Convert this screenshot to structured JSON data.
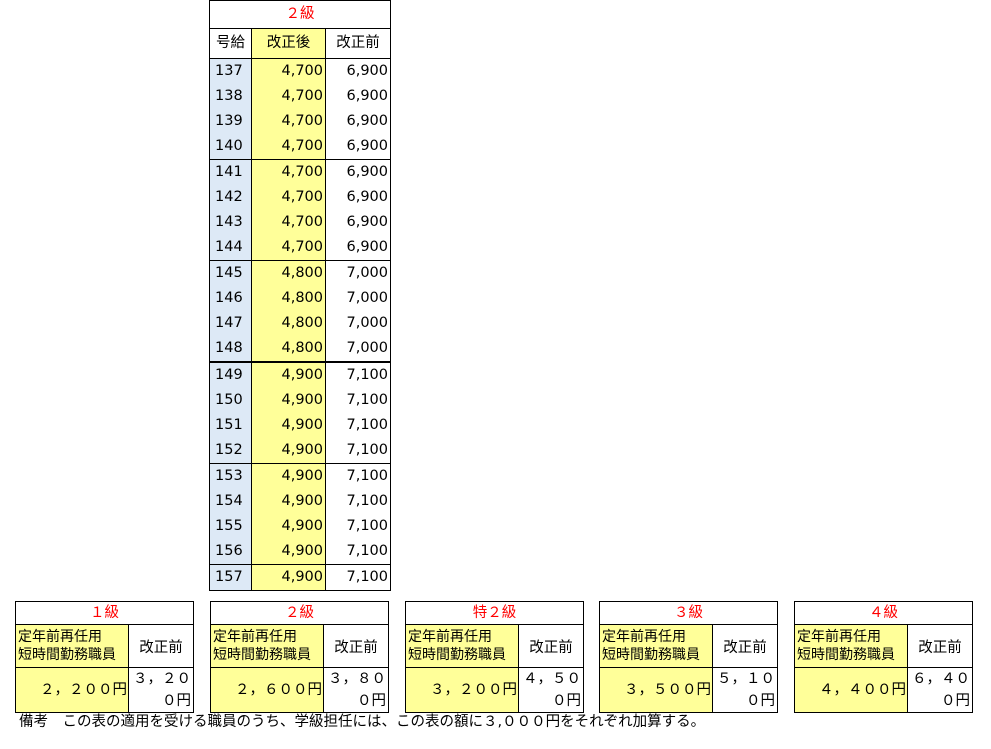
{
  "main_table": {
    "title": "２級",
    "headers": {
      "no": "号給",
      "after": "改正後",
      "before": "改正前"
    },
    "rows": [
      {
        "no": "137",
        "after": "4,700",
        "before": "6,900"
      },
      {
        "no": "138",
        "after": "4,700",
        "before": "6,900"
      },
      {
        "no": "139",
        "after": "4,700",
        "before": "6,900"
      },
      {
        "no": "140",
        "after": "4,700",
        "before": "6,900"
      },
      {
        "no": "141",
        "after": "4,700",
        "before": "6,900"
      },
      {
        "no": "142",
        "after": "4,700",
        "before": "6,900"
      },
      {
        "no": "143",
        "after": "4,700",
        "before": "6,900"
      },
      {
        "no": "144",
        "after": "4,700",
        "before": "6,900"
      },
      {
        "no": "145",
        "after": "4,800",
        "before": "7,000"
      },
      {
        "no": "146",
        "after": "4,800",
        "before": "7,000"
      },
      {
        "no": "147",
        "after": "4,800",
        "before": "7,000"
      },
      {
        "no": "148",
        "after": "4,800",
        "before": "7,000"
      },
      {
        "no": "149",
        "after": "4,900",
        "before": "7,100"
      },
      {
        "no": "150",
        "after": "4,900",
        "before": "7,100"
      },
      {
        "no": "151",
        "after": "4,900",
        "before": "7,100"
      },
      {
        "no": "152",
        "after": "4,900",
        "before": "7,100"
      },
      {
        "no": "153",
        "after": "4,900",
        "before": "7,100"
      },
      {
        "no": "154",
        "after": "4,900",
        "before": "7,100"
      },
      {
        "no": "155",
        "after": "4,900",
        "before": "7,100"
      },
      {
        "no": "156",
        "after": "4,900",
        "before": "7,100"
      },
      {
        "no": "157",
        "after": "4,900",
        "before": "7,100"
      }
    ]
  },
  "grades": [
    {
      "title": "１級",
      "label_line1": "定年前再任用",
      "label_line2": "短時間勤務職員",
      "prev_header": "改正前",
      "value": "２，２００円",
      "prev_value": "３，２００円"
    },
    {
      "title": "２級",
      "label_line1": "定年前再任用",
      "label_line2": "短時間勤務職員",
      "prev_header": "改正前",
      "value": "２，６００円",
      "prev_value": "３，８００円"
    },
    {
      "title": "特２級",
      "label_line1": "定年前再任用",
      "label_line2": "短時間勤務職員",
      "prev_header": "改正前",
      "value": "３，２００円",
      "prev_value": "４，５００円"
    },
    {
      "title": "３級",
      "label_line1": "定年前再任用",
      "label_line2": "短時間勤務職員",
      "prev_header": "改正前",
      "value": "３，５００円",
      "prev_value": "５，１００円"
    },
    {
      "title": "４級",
      "label_line1": "定年前再任用",
      "label_line2": "短時間勤務職員",
      "prev_header": "改正前",
      "value": "４，４００円",
      "prev_value": "６，４００円"
    }
  ],
  "note": "備考　この表の適用を受ける職員のうち、学級担任には、この表の額に３,０００円をそれぞれ加算する。"
}
